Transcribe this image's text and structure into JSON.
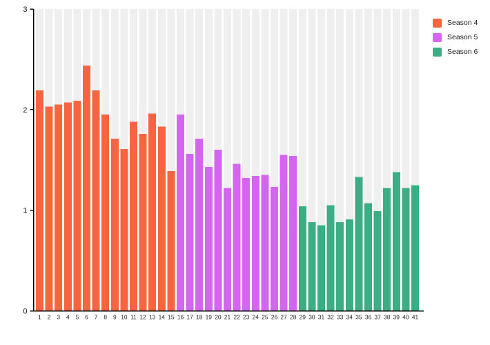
{
  "chart": {
    "background_color": "#ffffff",
    "plot_band_color": "#efefef",
    "axis_color": "#000000",
    "y_tick_label_color": "#111111",
    "x_tick_label_color": "#222222"
  },
  "legend": {
    "position": "top-right",
    "items": [
      {
        "label": "Season 4",
        "color": "#f76540"
      },
      {
        "label": "Season 5",
        "color": "#d465ef"
      },
      {
        "label": "Season 6",
        "color": "#3cad85"
      }
    ]
  },
  "chart_data": {
    "type": "bar",
    "title": "",
    "xlabel": "",
    "ylabel": "",
    "ylim": [
      0,
      3
    ],
    "yticks": [
      "0",
      "1",
      "2",
      "3"
    ],
    "grid": false,
    "background_bands": true,
    "legend_position": "top-right",
    "categories": [
      "1",
      "2",
      "3",
      "4",
      "5",
      "6",
      "7",
      "8",
      "9",
      "10",
      "11",
      "12",
      "13",
      "14",
      "15",
      "16",
      "17",
      "18",
      "19",
      "20",
      "21",
      "22",
      "23",
      "24",
      "25",
      "26",
      "27",
      "28",
      "29",
      "30",
      "31",
      "32",
      "33",
      "34",
      "35",
      "36",
      "37",
      "38",
      "39",
      "40",
      "41"
    ],
    "series": [
      {
        "name": "Season 4",
        "color": "#f76540",
        "x": [
          1,
          2,
          3,
          4,
          5,
          6,
          7,
          8,
          9,
          10,
          11,
          12,
          13,
          14,
          15
        ],
        "values": [
          2.19,
          2.03,
          2.05,
          2.07,
          2.09,
          2.44,
          2.19,
          1.95,
          1.71,
          1.61,
          1.88,
          1.76,
          1.96,
          1.83,
          1.39
        ]
      },
      {
        "name": "Season 5",
        "color": "#d465ef",
        "x": [
          16,
          17,
          18,
          19,
          20,
          21,
          22,
          23,
          24,
          25,
          26,
          27,
          28
        ],
        "values": [
          1.95,
          1.56,
          1.71,
          1.43,
          1.6,
          1.22,
          1.46,
          1.32,
          1.34,
          1.35,
          1.23,
          1.55,
          1.54
        ]
      },
      {
        "name": "Season 6",
        "color": "#3cad85",
        "x": [
          29,
          30,
          31,
          32,
          33,
          34,
          35,
          36,
          37,
          38,
          39,
          40,
          41
        ],
        "values": [
          1.04,
          0.88,
          0.85,
          1.05,
          0.88,
          0.91,
          1.33,
          1.07,
          0.99,
          1.22,
          1.38,
          1.22,
          1.25
        ]
      }
    ]
  }
}
